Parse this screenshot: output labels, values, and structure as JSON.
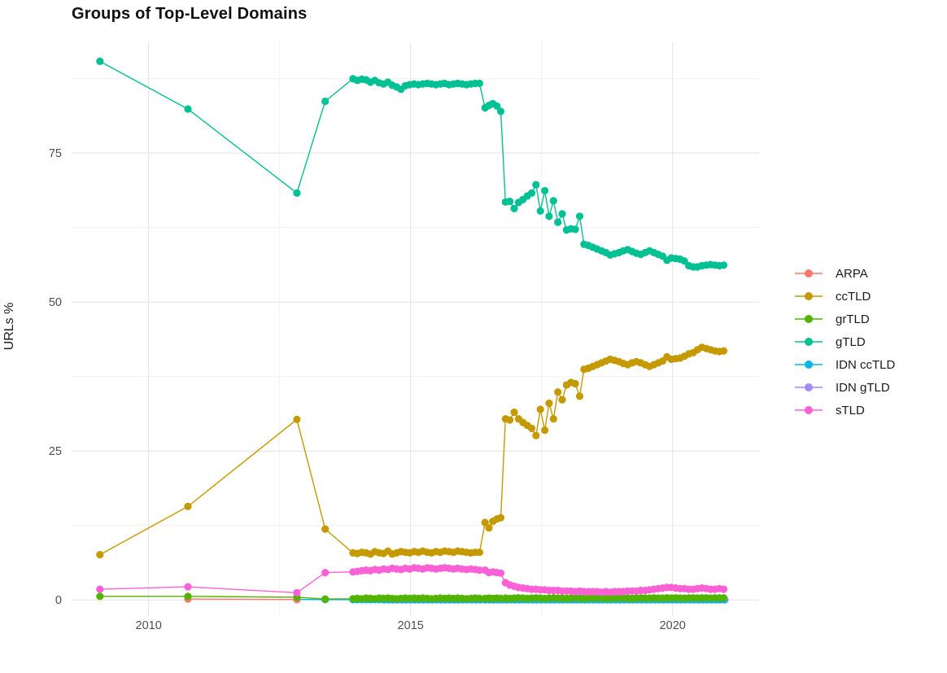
{
  "chart_data": {
    "type": "line",
    "title": "Groups of Top-Level Domains",
    "xlabel": "",
    "ylabel": "URLs %",
    "grid": true,
    "legend_position": "right",
    "x_axis": {
      "major_ticks": [
        2010,
        2015,
        2020
      ],
      "tick_labels": [
        "2010",
        "2015",
        "2020"
      ],
      "minor_ticks": [
        2012.5,
        2017.5
      ],
      "range": [
        2008.53,
        2021.65
      ]
    },
    "y_axis": {
      "major_ticks": [
        0,
        25,
        50,
        75
      ],
      "tick_labels": [
        "0",
        "25",
        "50",
        "75"
      ],
      "minor_ticks": [
        12.5,
        37.5,
        62.5,
        87.5
      ],
      "range": [
        -2.7,
        93.6
      ]
    },
    "series": [
      {
        "name": "ARPA",
        "color": "#F8766D",
        "z": 2,
        "segments": [
          {
            "points": [
              [
                2010.75,
                0.15
              ],
              [
                2012.83,
                0.07
              ]
            ]
          }
        ]
      },
      {
        "name": "ccTLD",
        "color": "#C49A00",
        "z": 3,
        "segments": [
          {
            "points": [
              [
                2009.07,
                7.6
              ],
              [
                2010.75,
                15.7
              ],
              [
                2012.83,
                30.3
              ],
              [
                2013.37,
                11.9
              ]
            ]
          },
          {
            "x0": 2013.9,
            "dx": 0.0833,
            "y": [
              7.9,
              7.8,
              8.0,
              7.9,
              7.7,
              8.1,
              7.9,
              7.8,
              8.2,
              7.7,
              7.9,
              8.1,
              8.0,
              7.9,
              8.1,
              8.0,
              8.2,
              8.0,
              7.9,
              8.1,
              8.0,
              8.2,
              8.1,
              8.0,
              8.2,
              8.1,
              8.0,
              7.9,
              8.0,
              8.0
            ]
          },
          {
            "x0": 2016.42,
            "dx": 0.075,
            "y": [
              13.0,
              12.1,
              13.2,
              13.6,
              13.8
            ]
          },
          {
            "x0": 2016.81,
            "dx": 0.0833,
            "y": [
              30.4,
              30.2,
              31.5,
              30.4,
              29.8,
              29.3,
              28.8,
              27.6,
              32.0,
              28.5,
              33.0,
              30.4,
              34.9,
              33.6,
              36.1,
              36.5,
              36.3,
              34.2,
              38.7,
              38.9,
              39.2,
              39.5,
              39.8,
              40.1,
              40.4,
              40.2,
              40.0,
              39.7,
              39.5,
              39.8,
              40.0,
              39.8,
              39.5,
              39.2,
              39.5,
              39.8,
              40.1,
              40.8,
              40.4,
              40.5,
              40.6,
              40.9,
              41.3,
              41.5,
              42.0,
              42.4,
              42.2,
              42.0,
              41.8,
              41.7,
              41.8
            ]
          }
        ]
      },
      {
        "name": "grTLD",
        "color": "#53B400",
        "z": 5,
        "segments": [
          {
            "points": [
              [
                2009.07,
                0.6
              ],
              [
                2010.75,
                0.6
              ],
              [
                2012.83,
                0.45
              ],
              [
                2013.37,
                0.15
              ]
            ]
          },
          {
            "x0": 2013.9,
            "dx": 0.0833,
            "y": [
              0.2,
              0.25,
              0.2,
              0.3,
              0.25,
              0.2,
              0.3,
              0.25,
              0.3,
              0.25,
              0.2,
              0.25,
              0.3,
              0.25,
              0.3,
              0.25,
              0.3,
              0.25,
              0.2,
              0.25,
              0.3,
              0.25,
              0.3,
              0.25,
              0.3,
              0.25,
              0.2,
              0.25,
              0.3,
              0.25
            ]
          },
          {
            "x0": 2016.42,
            "dx": 0.075,
            "y": [
              0.25,
              0.3,
              0.25,
              0.3,
              0.25
            ]
          },
          {
            "x0": 2016.81,
            "dx": 0.0833,
            "y": [
              0.3,
              0.25,
              0.3,
              0.35,
              0.3,
              0.25,
              0.3,
              0.35,
              0.3,
              0.25,
              0.3,
              0.35,
              0.3,
              0.3,
              0.25,
              0.3,
              0.35,
              0.3,
              0.25,
              0.3,
              0.3,
              0.35,
              0.3,
              0.25,
              0.3,
              0.3,
              0.35,
              0.3,
              0.3,
              0.25,
              0.3,
              0.35,
              0.3,
              0.3,
              0.35,
              0.3,
              0.3,
              0.35,
              0.3,
              0.35,
              0.3,
              0.3,
              0.35,
              0.35,
              0.3,
              0.35,
              0.35,
              0.3,
              0.35,
              0.35,
              0.35
            ]
          }
        ]
      },
      {
        "name": "gTLD",
        "color": "#00C094",
        "z": 4,
        "segments": [
          {
            "points": [
              [
                2009.07,
                90.4
              ],
              [
                2010.75,
                82.4
              ],
              [
                2012.83,
                68.3
              ],
              [
                2013.37,
                83.7
              ]
            ]
          },
          {
            "x0": 2013.9,
            "dx": 0.0833,
            "y": [
              87.5,
              87.2,
              87.4,
              87.3,
              86.9,
              87.2,
              86.8,
              86.6,
              86.9,
              86.4,
              86.1,
              85.7,
              86.3,
              86.5,
              86.6,
              86.5,
              86.6,
              86.7,
              86.6,
              86.5,
              86.6,
              86.7,
              86.5,
              86.6,
              86.7,
              86.6,
              86.5,
              86.6,
              86.7,
              86.7
            ]
          },
          {
            "x0": 2016.42,
            "dx": 0.075,
            "y": [
              82.6,
              83.0,
              83.3,
              82.9,
              82.0
            ]
          },
          {
            "x0": 2016.81,
            "dx": 0.0833,
            "y": [
              66.8,
              66.9,
              65.7,
              66.7,
              67.2,
              67.8,
              68.3,
              69.7,
              65.3,
              68.7,
              64.4,
              67.0,
              63.4,
              64.8,
              62.1,
              62.3,
              62.2,
              64.4,
              59.7,
              59.5,
              59.2,
              58.9,
              58.6,
              58.3,
              57.9,
              58.1,
              58.3,
              58.6,
              58.8,
              58.5,
              58.2,
              58.0,
              58.3,
              58.6,
              58.3,
              58.0,
              57.7,
              57.0,
              57.4,
              57.3,
              57.2,
              56.9,
              56.1,
              55.9,
              55.9,
              56.1,
              56.2,
              56.3,
              56.2,
              56.1,
              56.2
            ]
          }
        ]
      },
      {
        "name": "IDN ccTLD",
        "color": "#00B6EB",
        "z": 1,
        "segments": [
          {
            "points": [
              [
                2012.83,
                0.1
              ],
              [
                2013.37,
                0.06
              ]
            ]
          },
          {
            "x0": 2013.9,
            "dx": 0.0833,
            "n": 30,
            "const": 0.05
          },
          {
            "x0": 2016.42,
            "dx": 0.075,
            "n": 5,
            "const": 0.05
          },
          {
            "x0": 2016.81,
            "dx": 0.0833,
            "n": 51,
            "const": 0.05
          }
        ]
      },
      {
        "name": "IDN gTLD",
        "color": "#A58AFF",
        "z": 0,
        "segments": [
          {
            "x0": 2014.5,
            "dx": 0.0833,
            "n": 79,
            "const": 0.02
          }
        ]
      },
      {
        "name": "sTLD",
        "color": "#FB61D7",
        "z": 6,
        "segments": [
          {
            "points": [
              [
                2009.07,
                1.8
              ],
              [
                2010.75,
                2.2
              ],
              [
                2012.83,
                1.2
              ],
              [
                2013.37,
                4.6
              ]
            ]
          },
          {
            "x0": 2013.9,
            "dx": 0.0833,
            "y": [
              4.7,
              4.8,
              4.9,
              5.0,
              4.9,
              5.1,
              5.0,
              5.2,
              5.1,
              5.3,
              5.2,
              5.1,
              5.3,
              5.2,
              5.4,
              5.3,
              5.2,
              5.4,
              5.3,
              5.2,
              5.3,
              5.4,
              5.3,
              5.2,
              5.3,
              5.2,
              5.1,
              5.2,
              5.1,
              5.0
            ]
          },
          {
            "x0": 2016.42,
            "dx": 0.075,
            "y": [
              5.0,
              4.6,
              4.7,
              4.6,
              4.5
            ]
          },
          {
            "x0": 2016.81,
            "dx": 0.0833,
            "y": [
              2.9,
              2.5,
              2.3,
              2.1,
              2.0,
              1.9,
              1.8,
              1.8,
              1.7,
              1.7,
              1.6,
              1.6,
              1.6,
              1.5,
              1.5,
              1.5,
              1.4,
              1.5,
              1.4,
              1.4,
              1.4,
              1.4,
              1.3,
              1.4,
              1.3,
              1.4,
              1.4,
              1.4,
              1.5,
              1.5,
              1.5,
              1.6,
              1.6,
              1.7,
              1.8,
              1.9,
              2.0,
              2.1,
              2.1,
              2.0,
              1.9,
              1.9,
              1.8,
              1.8,
              1.9,
              2.0,
              1.9,
              1.8,
              1.8,
              1.9,
              1.8
            ]
          }
        ]
      }
    ],
    "style": {
      "grid_major_color": "#e3e3e3",
      "grid_minor_color": "#f0f0f0",
      "tick_label_color": "#4d4d4d",
      "point_radius": 4.6,
      "line_width": 1.4
    }
  }
}
